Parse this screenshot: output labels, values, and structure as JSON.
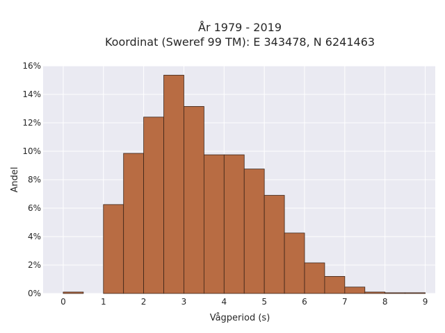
{
  "chart_data": {
    "type": "bar",
    "title": "År 1979 - 2019",
    "subtitle": "Koordinat (Sweref 99 TM): E 343478, N 6241463",
    "xlabel": "Vågperiod (s)",
    "ylabel": "Andel",
    "xlim": [
      -0.5,
      9.25
    ],
    "ylim": [
      0,
      16
    ],
    "xticks": [
      0,
      1,
      2,
      3,
      4,
      5,
      6,
      7,
      8,
      9
    ],
    "yticks": [
      0,
      2,
      4,
      6,
      8,
      10,
      12,
      14,
      16
    ],
    "ytick_labels": [
      "0%",
      "2%",
      "4%",
      "6%",
      "8%",
      "10%",
      "12%",
      "14%",
      "16%"
    ],
    "bin_width": 0.5,
    "bin_starts": [
      0,
      0.5,
      1,
      1.5,
      2,
      2.5,
      3,
      3.5,
      4,
      4.5,
      5,
      5.5,
      6,
      6.5,
      7,
      7.5,
      8,
      8.5
    ],
    "values": [
      0.1,
      0,
      6.25,
      9.85,
      12.4,
      15.35,
      13.15,
      9.75,
      9.75,
      8.75,
      6.9,
      4.25,
      2.15,
      1.2,
      0.45,
      0.1,
      0.05,
      0.05
    ],
    "grid": true,
    "colors": {
      "bar_fill": "#b86c43",
      "bar_edge": "#3b2418",
      "plot_bg": "#eaeaf2",
      "grid": "#ffffff"
    }
  }
}
